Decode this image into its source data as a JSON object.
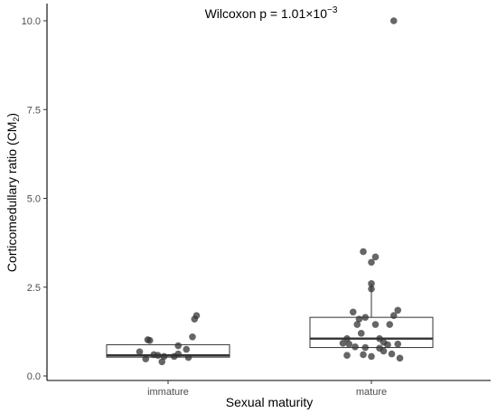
{
  "chart_data": {
    "type": "boxplot",
    "title": "",
    "xlabel": "Sexual maturity",
    "ylabel": {
      "main": "Corticomedullary ratio (CM",
      "sub": "2",
      "close": ")"
    },
    "annotation": {
      "prefix": "Wilcoxon p = 1.01×10",
      "exponent": "−3"
    },
    "ylim": [
      0,
      10.2
    ],
    "yticks": [
      0.0,
      2.5,
      5.0,
      7.5,
      10.0
    ],
    "ytick_labels": [
      "0.0",
      "2.5",
      "5.0",
      "7.5",
      "10.0"
    ],
    "categories": [
      "immature",
      "mature"
    ],
    "boxes": [
      {
        "category": "immature",
        "q1": 0.53,
        "median": 0.58,
        "q3": 0.88,
        "whisker_low": 0.53,
        "whisker_high": 0.88
      },
      {
        "category": "mature",
        "q1": 0.8,
        "median": 1.05,
        "q3": 1.65,
        "whisker_low": 0.8,
        "whisker_high": 2.6
      }
    ],
    "points": [
      {
        "category": "immature",
        "jitter": 0.14,
        "y": 1.7
      },
      {
        "category": "immature",
        "jitter": 0.13,
        "y": 1.6
      },
      {
        "category": "immature",
        "jitter": 0.12,
        "y": 1.1
      },
      {
        "category": "immature",
        "jitter": -0.1,
        "y": 1.02
      },
      {
        "category": "immature",
        "jitter": -0.09,
        "y": 1.0
      },
      {
        "category": "immature",
        "jitter": 0.05,
        "y": 0.85
      },
      {
        "category": "immature",
        "jitter": 0.09,
        "y": 0.75
      },
      {
        "category": "immature",
        "jitter": -0.14,
        "y": 0.68
      },
      {
        "category": "immature",
        "jitter": 0.05,
        "y": 0.62
      },
      {
        "category": "immature",
        "jitter": -0.07,
        "y": 0.6
      },
      {
        "category": "immature",
        "jitter": -0.05,
        "y": 0.58
      },
      {
        "category": "immature",
        "jitter": -0.02,
        "y": 0.55
      },
      {
        "category": "immature",
        "jitter": 0.03,
        "y": 0.55
      },
      {
        "category": "immature",
        "jitter": 0.1,
        "y": 0.52
      },
      {
        "category": "immature",
        "jitter": -0.11,
        "y": 0.48
      },
      {
        "category": "immature",
        "jitter": -0.03,
        "y": 0.4
      },
      {
        "category": "mature",
        "jitter": 0.11,
        "y": 10.0
      },
      {
        "category": "mature",
        "jitter": -0.04,
        "y": 3.5
      },
      {
        "category": "mature",
        "jitter": 0.02,
        "y": 3.35
      },
      {
        "category": "mature",
        "jitter": 0.0,
        "y": 3.2
      },
      {
        "category": "mature",
        "jitter": 0.0,
        "y": 2.6
      },
      {
        "category": "mature",
        "jitter": 0.0,
        "y": 2.45
      },
      {
        "category": "mature",
        "jitter": 0.13,
        "y": 1.85
      },
      {
        "category": "mature",
        "jitter": -0.09,
        "y": 1.8
      },
      {
        "category": "mature",
        "jitter": 0.11,
        "y": 1.7
      },
      {
        "category": "mature",
        "jitter": -0.03,
        "y": 1.65
      },
      {
        "category": "mature",
        "jitter": -0.06,
        "y": 1.6
      },
      {
        "category": "mature",
        "jitter": -0.07,
        "y": 1.45
      },
      {
        "category": "mature",
        "jitter": 0.09,
        "y": 1.45
      },
      {
        "category": "mature",
        "jitter": 0.02,
        "y": 1.45
      },
      {
        "category": "mature",
        "jitter": -0.05,
        "y": 1.2
      },
      {
        "category": "mature",
        "jitter": -0.12,
        "y": 1.05
      },
      {
        "category": "mature",
        "jitter": 0.04,
        "y": 1.05
      },
      {
        "category": "mature",
        "jitter": 0.06,
        "y": 0.95
      },
      {
        "category": "mature",
        "jitter": -0.14,
        "y": 0.92
      },
      {
        "category": "mature",
        "jitter": -0.11,
        "y": 0.9
      },
      {
        "category": "mature",
        "jitter": 0.13,
        "y": 0.9
      },
      {
        "category": "mature",
        "jitter": 0.08,
        "y": 0.88
      },
      {
        "category": "mature",
        "jitter": -0.08,
        "y": 0.82
      },
      {
        "category": "mature",
        "jitter": -0.03,
        "y": 0.8
      },
      {
        "category": "mature",
        "jitter": 0.04,
        "y": 0.78
      },
      {
        "category": "mature",
        "jitter": 0.06,
        "y": 0.7
      },
      {
        "category": "mature",
        "jitter": 0.1,
        "y": 0.62
      },
      {
        "category": "mature",
        "jitter": -0.04,
        "y": 0.6
      },
      {
        "category": "mature",
        "jitter": -0.12,
        "y": 0.58
      },
      {
        "category": "mature",
        "jitter": 0.0,
        "y": 0.55
      },
      {
        "category": "mature",
        "jitter": 0.14,
        "y": 0.5
      }
    ],
    "point_color": "#333333",
    "box_fill": "#ffffff",
    "box_stroke": "#333333",
    "grid": false,
    "legend": "none"
  }
}
